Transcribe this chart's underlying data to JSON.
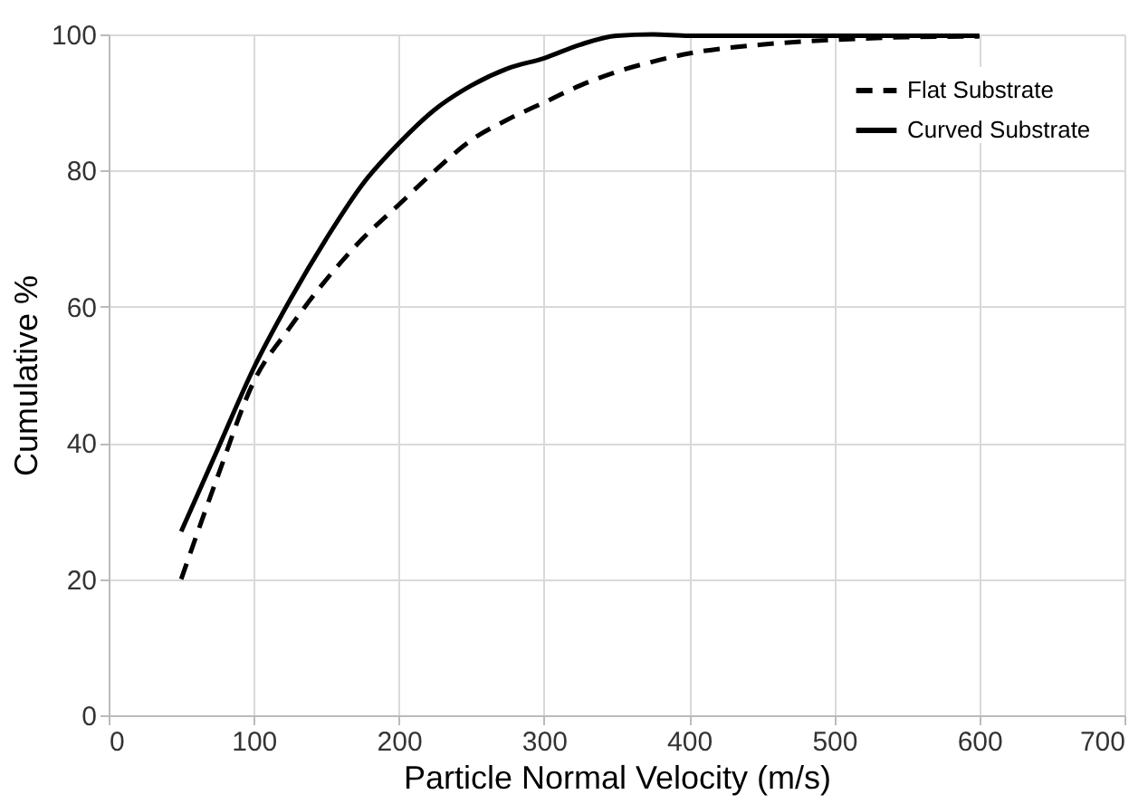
{
  "chart_data": {
    "type": "line",
    "xlabel": "Particle Normal Velocity (m/s)",
    "ylabel": "Cumulative %",
    "xlim": [
      0,
      700
    ],
    "xticks": [
      0,
      100,
      200,
      300,
      400,
      500,
      600,
      700
    ],
    "ylim": [
      0,
      100
    ],
    "yticks": [
      0,
      20,
      40,
      60,
      80,
      100
    ],
    "grid": true,
    "legend": "top right",
    "marker": "none",
    "series": [
      {
        "name": "Flat Substrate",
        "color": "#000000",
        "line_style": "dashed",
        "x": [
          50,
          75,
          100,
          125,
          150,
          175,
          200,
          225,
          250,
          275,
          300,
          325,
          350,
          375,
          400,
          450,
          500,
          550,
          600
        ],
        "values": [
          20,
          35,
          49,
          57,
          64,
          70,
          75,
          80,
          84.5,
          87.5,
          90,
          92.5,
          94.5,
          96,
          97.2,
          98.5,
          99.2,
          99.6,
          99.7
        ]
      },
      {
        "name": "Curved Substrate",
        "color": "#000000",
        "line_style": "solid",
        "x": [
          50,
          75,
          100,
          125,
          150,
          175,
          200,
          225,
          250,
          275,
          300,
          325,
          350,
          375,
          400,
          500,
          600
        ],
        "values": [
          27,
          39,
          51,
          61,
          70,
          78,
          84,
          89,
          92.5,
          95,
          96.5,
          98.5,
          99.8,
          100,
          99.8,
          99.8,
          99.8
        ]
      }
    ]
  }
}
